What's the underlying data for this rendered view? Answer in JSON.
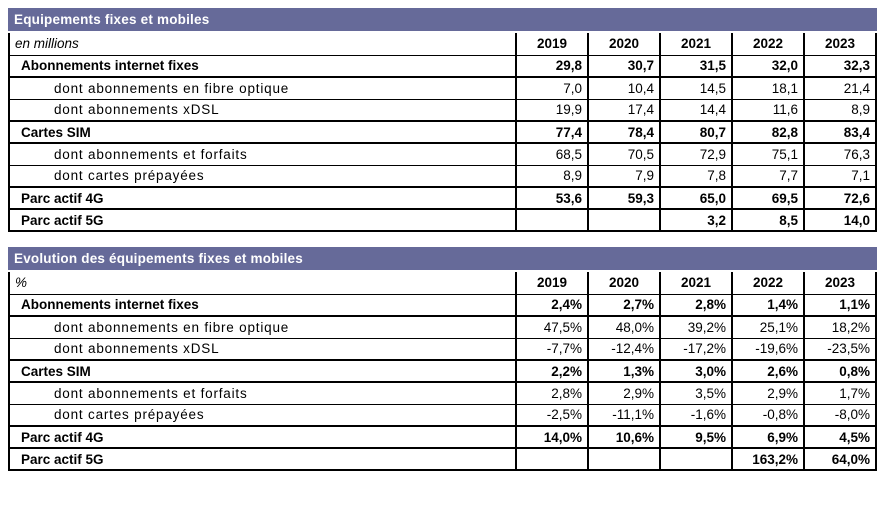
{
  "accent_color": "#666A99",
  "years": [
    "2019",
    "2020",
    "2021",
    "2022",
    "2023"
  ],
  "tables": [
    {
      "title": "Equipements fixes et mobiles",
      "unit_label": "en millions",
      "years": [
        "2019",
        "2020",
        "2021",
        "2022",
        "2023"
      ],
      "rows": [
        {
          "label": "Abonnements internet fixes",
          "style": "group",
          "values": [
            "29,8",
            "30,7",
            "31,5",
            "32,0",
            "32,3"
          ]
        },
        {
          "label": "dont abonnements en fibre optique",
          "style": "sub",
          "values": [
            "7,0",
            "10,4",
            "14,5",
            "18,1",
            "21,4"
          ]
        },
        {
          "label": "dont abonnements xDSL",
          "style": "sub",
          "values": [
            "19,9",
            "17,4",
            "14,4",
            "11,6",
            "8,9"
          ]
        },
        {
          "label": "Cartes SIM",
          "style": "group",
          "values": [
            "77,4",
            "78,4",
            "80,7",
            "82,8",
            "83,4"
          ]
        },
        {
          "label": "dont abonnements et forfaits",
          "style": "sub",
          "values": [
            "68,5",
            "70,5",
            "72,9",
            "75,1",
            "76,3"
          ]
        },
        {
          "label": "dont cartes prépayées",
          "style": "sub",
          "values": [
            "8,9",
            "7,9",
            "7,8",
            "7,7",
            "7,1"
          ]
        },
        {
          "label": "Parc actif 4G",
          "style": "group",
          "values": [
            "53,6",
            "59,3",
            "65,0",
            "69,5",
            "72,6"
          ]
        },
        {
          "label": "Parc actif 5G",
          "style": "group",
          "values": [
            "",
            "",
            "3,2",
            "8,5",
            "14,0"
          ]
        }
      ]
    },
    {
      "title": "Evolution des équipements fixes et mobiles",
      "unit_label": "%",
      "years": [
        "2019",
        "2020",
        "2021",
        "2022",
        "2023"
      ],
      "rows": [
        {
          "label": "Abonnements internet fixes",
          "style": "group",
          "values": [
            "2,4%",
            "2,7%",
            "2,8%",
            "1,4%",
            "1,1%"
          ]
        },
        {
          "label": "dont abonnements en fibre optique",
          "style": "sub",
          "values": [
            "47,5%",
            "48,0%",
            "39,2%",
            "25,1%",
            "18,2%"
          ]
        },
        {
          "label": "dont abonnements xDSL",
          "style": "sub",
          "values": [
            "-7,7%",
            "-12,4%",
            "-17,2%",
            "-19,6%",
            "-23,5%"
          ]
        },
        {
          "label": "Cartes SIM",
          "style": "group",
          "values": [
            "2,2%",
            "1,3%",
            "3,0%",
            "2,6%",
            "0,8%"
          ]
        },
        {
          "label": "dont abonnements et forfaits",
          "style": "sub",
          "values": [
            "2,8%",
            "2,9%",
            "3,5%",
            "2,9%",
            "1,7%"
          ]
        },
        {
          "label": "dont cartes prépayées",
          "style": "sub",
          "values": [
            "-2,5%",
            "-11,1%",
            "-1,6%",
            "-0,8%",
            "-8,0%"
          ]
        },
        {
          "label": "Parc actif 4G",
          "style": "group",
          "values": [
            "14,0%",
            "10,6%",
            "9,5%",
            "6,9%",
            "4,5%"
          ]
        },
        {
          "label": "Parc actif 5G",
          "style": "group",
          "values": [
            "",
            "",
            "",
            "163,2%",
            "64,0%"
          ]
        }
      ]
    }
  ]
}
